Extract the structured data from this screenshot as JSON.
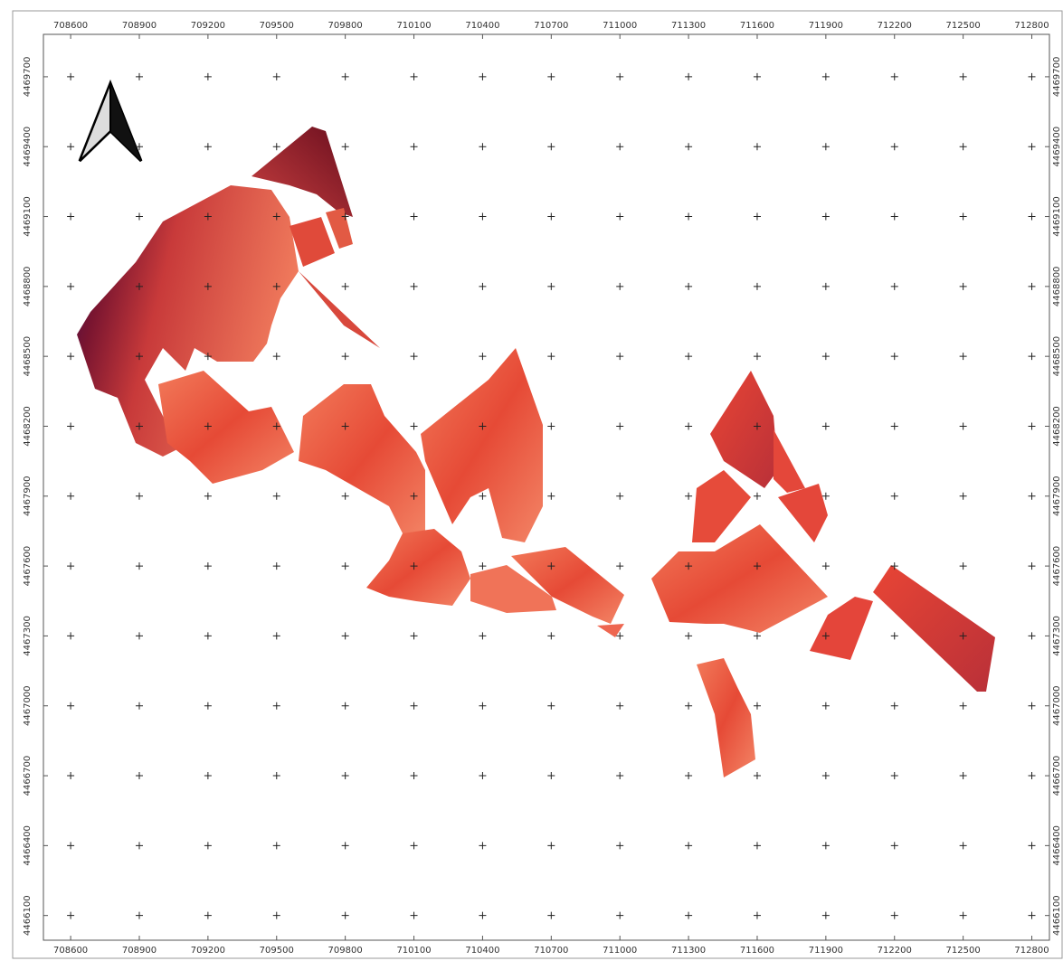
{
  "chart_data": {
    "type": "map",
    "xlim": [
      708481,
      712877
    ],
    "ylim": [
      4465994,
      4469882
    ],
    "xticks": [
      708600,
      708900,
      709200,
      709500,
      709800,
      710100,
      710400,
      710700,
      711000,
      711300,
      711600,
      711900,
      712200,
      712500,
      712800
    ],
    "yticks": [
      4469700,
      4469400,
      4469100,
      4468800,
      4468500,
      4468200,
      4467900,
      4467600,
      4467300,
      4467000,
      4466700,
      4466400,
      4466100
    ],
    "grid": true
  }
}
